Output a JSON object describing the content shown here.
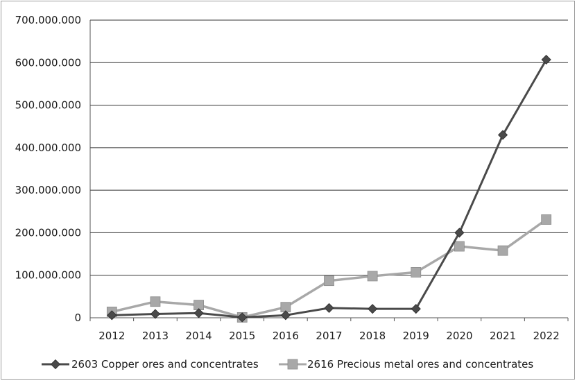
{
  "chart_data": {
    "type": "line",
    "categories": [
      "2012",
      "2013",
      "2014",
      "2015",
      "2016",
      "2017",
      "2018",
      "2019",
      "2020",
      "2021",
      "2022"
    ],
    "ylim": [
      0,
      700000000
    ],
    "yticks": [
      0,
      100000000,
      200000000,
      300000000,
      400000000,
      500000000,
      600000000,
      700000000
    ],
    "ytick_labels": [
      "0",
      "100.000.000",
      "200.000.000",
      "300.000.000",
      "400.000.000",
      "500.000.000",
      "600.000.000",
      "700.000.000"
    ],
    "grid": "horizontal",
    "legend_position": "bottom",
    "series": [
      {
        "name": "2603 Copper ores and concentrates",
        "color": "#4a4a4a",
        "marker": "diamond",
        "values": [
          6000000,
          9000000,
          11000000,
          1000000,
          6000000,
          23000000,
          21000000,
          21000000,
          200000000,
          430000000,
          607000000
        ]
      },
      {
        "name": "2616 Precious metal ores and concentrates",
        "color": "#a8a8a8",
        "marker": "square",
        "values": [
          14000000,
          38000000,
          30000000,
          1000000,
          25000000,
          87000000,
          98000000,
          107000000,
          168000000,
          158000000,
          231000000
        ]
      }
    ]
  }
}
